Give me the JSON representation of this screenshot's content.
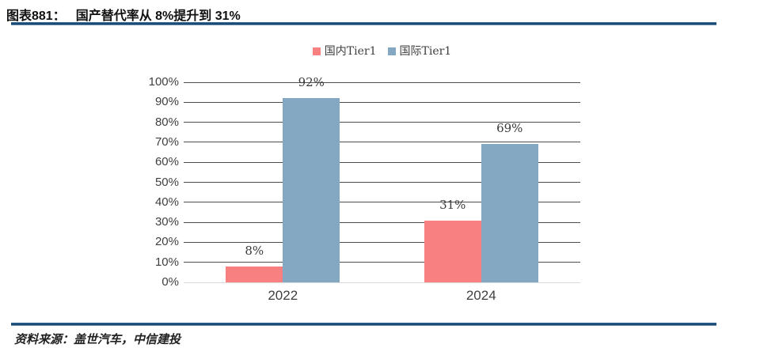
{
  "header": {
    "figure_label": "图表881：",
    "figure_title": "国产替代率从 8%提升到 31%"
  },
  "footer": {
    "source_text": "资料来源：盖世汽车，中信建投"
  },
  "colors": {
    "domestic_bar": "#f98080",
    "international_bar": "#84a7c2",
    "divider_blue": "#1a4b77",
    "gridline": "#4d4d4d",
    "baseline": "#dadada",
    "axis_text": "#3f3f3f"
  },
  "chart_data": {
    "type": "bar",
    "title": "",
    "categories": [
      "2022",
      "2024"
    ],
    "series": [
      {
        "name": "国内Tier1",
        "color": "#f98080",
        "values": [
          8,
          31
        ],
        "labels": [
          "8%",
          "31%"
        ]
      },
      {
        "name": "国际Tier1",
        "color": "#84a7c2",
        "values": [
          92,
          69
        ],
        "labels": [
          "92%",
          "69%"
        ]
      }
    ],
    "xlabel": "",
    "ylabel": "",
    "ylim": [
      0,
      100
    ],
    "yticks": [
      "0%",
      "10%",
      "20%",
      "30%",
      "40%",
      "50%",
      "60%",
      "70%",
      "80%",
      "90%",
      "100%"
    ],
    "grid": true,
    "legend_position": "top"
  }
}
